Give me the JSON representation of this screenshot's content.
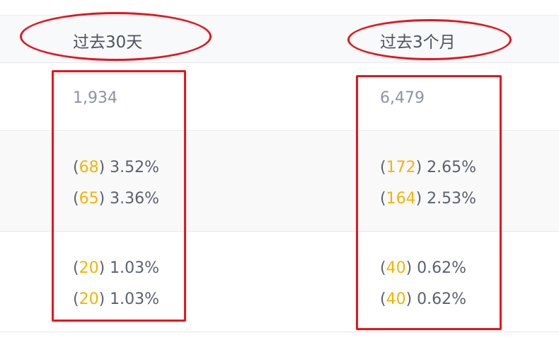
{
  "columns": [
    {
      "header": "过去30天",
      "total": "1,934",
      "group1": [
        {
          "count": "68",
          "pct": "3.52%"
        },
        {
          "count": "65",
          "pct": "3.36%"
        }
      ],
      "group2": [
        {
          "count": "20",
          "pct": "1.03%"
        },
        {
          "count": "20",
          "pct": "1.03%"
        }
      ]
    },
    {
      "header": "过去3个月",
      "total": "6,479",
      "group1": [
        {
          "count": "172",
          "pct": "2.65%"
        },
        {
          "count": "164",
          "pct": "2.53%"
        }
      ],
      "group2": [
        {
          "count": "40",
          "pct": "0.62%"
        },
        {
          "count": "40",
          "pct": "0.62%"
        }
      ]
    }
  ],
  "colors": {
    "annotation": "#e8141c",
    "count": "#f5b400",
    "text": "#5b616e"
  }
}
